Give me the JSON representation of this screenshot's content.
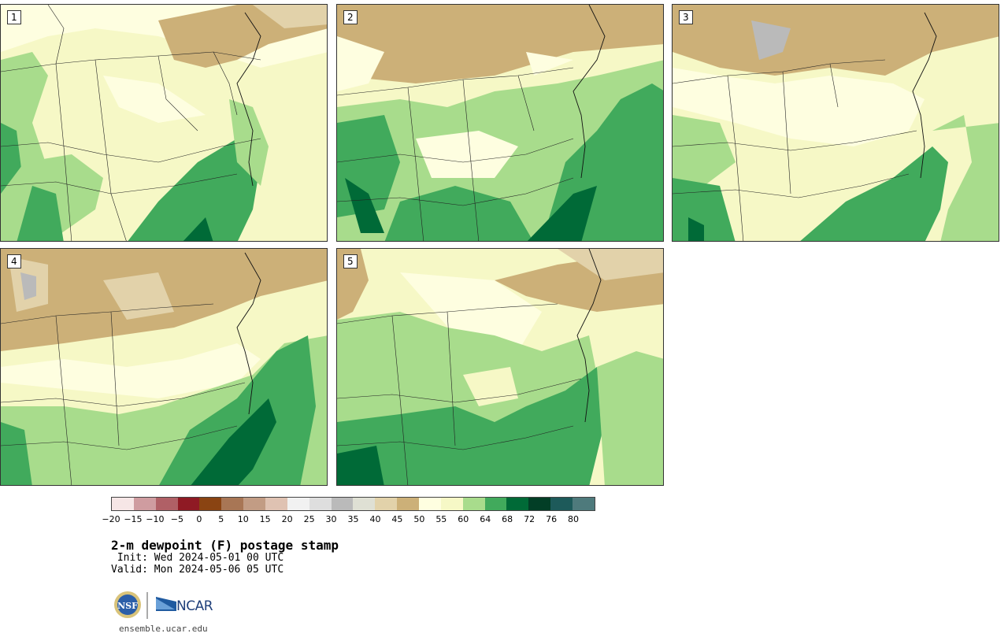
{
  "panels": [
    {
      "label": "1"
    },
    {
      "label": "2"
    },
    {
      "label": "3"
    },
    {
      "label": "4"
    },
    {
      "label": "5"
    }
  ],
  "colorbar": {
    "colors": [
      "#f6e6e6",
      "#cf9ca0",
      "#b06066",
      "#8f1a24",
      "#8a4412",
      "#a87655",
      "#c29c84",
      "#dfc2b2",
      "#f1f1f1",
      "#dedede",
      "#bababa",
      "#dfe0d4",
      "#e2d2aa",
      "#ccb078",
      "#fefee0",
      "#f6f8c6",
      "#a8dc8c",
      "#41aa5c",
      "#006a37",
      "#023e26",
      "#1d5a5a",
      "#4e7a7c"
    ],
    "tick_labels": [
      "−20",
      "−15",
      "−10",
      "−5",
      "0",
      "5",
      "10",
      "15",
      "20",
      "25",
      "30",
      "35",
      "40",
      "45",
      "50",
      "55",
      "60",
      "64",
      "68",
      "72",
      "76",
      "80"
    ]
  },
  "title": "2-m dewpoint (F) postage stamp",
  "init": " Init: Wed 2024-05-01 00 UTC",
  "valid": "Valid: Mon 2024-05-06 05 UTC",
  "logos": {
    "nsf": "NSF",
    "ncar": "NCAR"
  },
  "site": "ensemble.ucar.edu"
}
